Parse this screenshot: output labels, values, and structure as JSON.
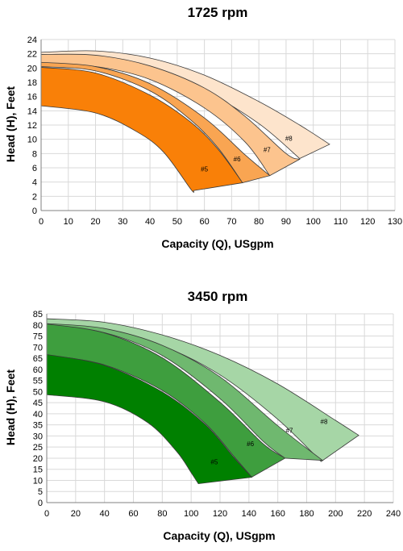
{
  "chart_data": [
    {
      "type": "area",
      "title": "1725 rpm",
      "xlabel": "Capacity (Q), USgpm",
      "ylabel": "Head (H), Feet",
      "xlim": [
        0,
        130
      ],
      "ylim": [
        0,
        24
      ],
      "xticks": [
        0,
        10,
        20,
        30,
        40,
        50,
        60,
        70,
        80,
        90,
        100,
        110,
        120,
        130
      ],
      "yticks": [
        0,
        2,
        4,
        6,
        8,
        10,
        12,
        14,
        16,
        18,
        20,
        22,
        24
      ],
      "grid": true,
      "series": [
        {
          "name": "#8",
          "color": "#fde4cc",
          "upper": [
            [
              0,
              22.2
            ],
            [
              20,
              22.4
            ],
            [
              40,
              21.4
            ],
            [
              60,
              19.0
            ],
            [
              80,
              15.3
            ],
            [
              95,
              12.0
            ],
            [
              106,
              9.3
            ]
          ],
          "lower": [
            [
              0,
              20.8
            ],
            [
              20,
              21.0
            ],
            [
              40,
              19.7
            ],
            [
              60,
              16.8
            ],
            [
              80,
              12.2
            ],
            [
              95,
              7.3
            ]
          ],
          "end_label": [
            91,
            9.8
          ]
        },
        {
          "name": "#7",
          "color": "#fcc48e",
          "upper": [
            [
              0,
              21.9
            ],
            [
              20,
              21.8
            ],
            [
              40,
              20.3
            ],
            [
              60,
              17.2
            ],
            [
              75,
              13.2
            ],
            [
              90,
              8.0
            ],
            [
              95,
              7.2
            ]
          ],
          "lower": [
            [
              0,
              20.4
            ],
            [
              20,
              20.2
            ],
            [
              40,
              18.4
            ],
            [
              60,
              14.4
            ],
            [
              75,
              9.6
            ],
            [
              84,
              4.9
            ]
          ],
          "end_label": [
            83,
            8.2
          ]
        },
        {
          "name": "#6",
          "color": "#f9a552",
          "upper": [
            [
              0,
              20.8
            ],
            [
              20,
              20.2
            ],
            [
              40,
              17.8
            ],
            [
              60,
              13.0
            ],
            [
              75,
              7.8
            ],
            [
              84,
              4.9
            ]
          ],
          "lower": [
            [
              0,
              20.2
            ],
            [
              20,
              19.6
            ],
            [
              40,
              16.8
            ],
            [
              55,
              12.7
            ],
            [
              65,
              8.8
            ],
            [
              74,
              3.9
            ]
          ],
          "end_label": [
            72,
            6.9
          ]
        },
        {
          "name": "#5",
          "color": "#f98008",
          "upper": [
            [
              0,
              20.1
            ],
            [
              20,
              19.3
            ],
            [
              40,
              16.2
            ],
            [
              55,
              12.4
            ],
            [
              65,
              8.6
            ],
            [
              74,
              3.9
            ]
          ],
          "lower": [
            [
              0,
              14.7
            ],
            [
              20,
              13.7
            ],
            [
              35,
              11.1
            ],
            [
              45,
              8.2
            ],
            [
              55,
              3.0
            ],
            [
              56,
              2.8
            ]
          ],
          "end_label": [
            60,
            5.5
          ]
        }
      ]
    },
    {
      "type": "area",
      "title": "3450 rpm",
      "xlabel": "Capacity (Q), USgpm",
      "ylabel": "Head (H), Feet",
      "xlim": [
        0,
        240
      ],
      "ylim": [
        0,
        85
      ],
      "xticks": [
        0,
        20,
        40,
        60,
        80,
        100,
        120,
        140,
        160,
        180,
        200,
        220,
        240
      ],
      "yticks": [
        0,
        5,
        10,
        15,
        20,
        25,
        30,
        35,
        40,
        45,
        50,
        55,
        60,
        65,
        70,
        75,
        80,
        85
      ],
      "grid": true,
      "series": [
        {
          "name": "#8",
          "color": "#a6d6a6",
          "upper": [
            [
              0,
              82.8
            ],
            [
              40,
              81.2
            ],
            [
              80,
              75.5
            ],
            [
              120,
              66.3
            ],
            [
              160,
              53.4
            ],
            [
              200,
              37.0
            ],
            [
              216,
              30.3
            ]
          ],
          "lower": [
            [
              0,
              80.5
            ],
            [
              40,
              78.0
            ],
            [
              80,
              70.6
            ],
            [
              120,
              57.5
            ],
            [
              160,
              37.5
            ],
            [
              190,
              18.5
            ]
          ],
          "end_label": [
            192,
            35.5
          ]
        },
        {
          "name": "#7",
          "color": "#6fb86f",
          "upper": [
            [
              0,
              80.6
            ],
            [
              40,
              78.4
            ],
            [
              80,
              70.8
            ],
            [
              120,
              56.6
            ],
            [
              160,
              34.6
            ],
            [
              191,
              19.0
            ]
          ],
          "lower": [
            [
              0,
              79.8
            ],
            [
              40,
              76.5
            ],
            [
              80,
              66.2
            ],
            [
              120,
              46.8
            ],
            [
              150,
              27.5
            ],
            [
              165,
              20.0
            ]
          ],
          "end_label": [
            168,
            31.5
          ]
        },
        {
          "name": "#6",
          "color": "#3e9e3e",
          "upper": [
            [
              0,
              80.4
            ],
            [
              40,
              76.4
            ],
            [
              80,
              65.2
            ],
            [
              120,
              45.2
            ],
            [
              150,
              26.4
            ],
            [
              165,
              20.0
            ]
          ],
          "lower": [
            [
              0,
              66.5
            ],
            [
              40,
              62.0
            ],
            [
              80,
              50.5
            ],
            [
              110,
              35.5
            ],
            [
              130,
              20.5
            ],
            [
              142,
              11.5
            ]
          ],
          "end_label": [
            141,
            25.5
          ]
        },
        {
          "name": "#5",
          "color": "#008000",
          "upper": [
            [
              0,
              66.7
            ],
            [
              40,
              61.8
            ],
            [
              80,
              49.8
            ],
            [
              110,
              35.0
            ],
            [
              130,
              20.0
            ],
            [
              142,
              11.4
            ]
          ],
          "lower": [
            [
              0,
              48.6
            ],
            [
              40,
              45.4
            ],
            [
              70,
              36.0
            ],
            [
              90,
              23.0
            ],
            [
              100,
              13.5
            ],
            [
              105,
              8.5
            ]
          ],
          "end_label": [
            116,
            17.2
          ]
        }
      ]
    }
  ]
}
